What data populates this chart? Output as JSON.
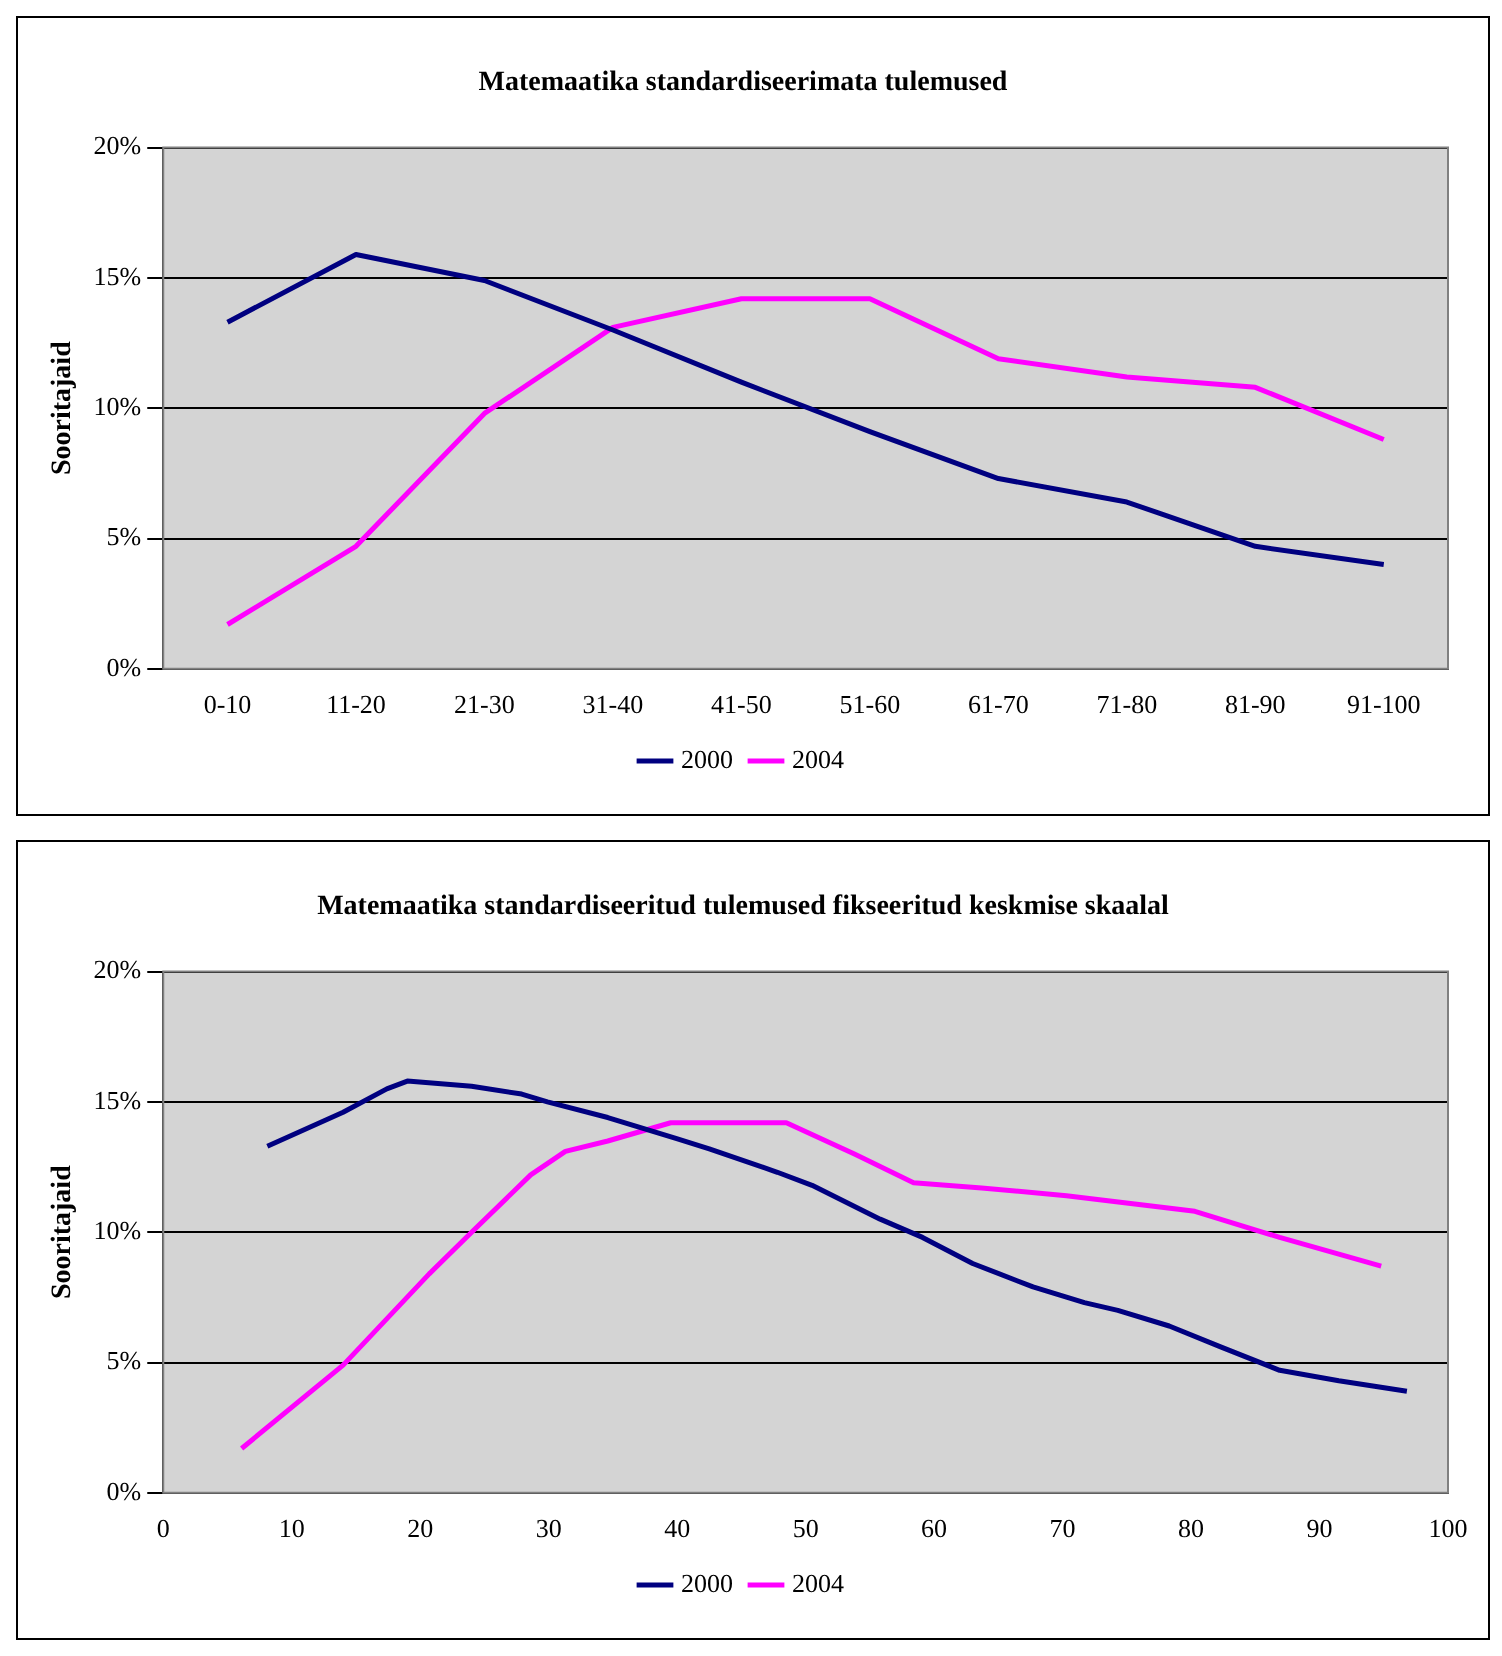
{
  "chart_data": [
    {
      "type": "line",
      "title": "Matemaatika standardiseerimata tulemused",
      "ylabel": "Sooritajaid",
      "categories": [
        "0-10",
        "11-20",
        "21-30",
        "31-40",
        "41-50",
        "51-60",
        "61-70",
        "71-80",
        "81-90",
        "91-100"
      ],
      "series": [
        {
          "name": "2000",
          "color": "#000080",
          "values": [
            13.3,
            15.9,
            14.9,
            13.0,
            11.0,
            9.1,
            7.3,
            6.4,
            4.7,
            4.0
          ]
        },
        {
          "name": "2004",
          "color": "#ff00ff",
          "values": [
            1.7,
            4.7,
            9.8,
            13.1,
            14.2,
            14.2,
            11.9,
            11.2,
            10.8,
            8.8
          ]
        }
      ],
      "ylim": [
        0,
        20
      ],
      "yticks": [
        {
          "value": 0,
          "label": "0%"
        },
        {
          "value": 5,
          "label": "5%"
        },
        {
          "value": 10,
          "label": "10%"
        },
        {
          "value": 15,
          "label": "15%"
        },
        {
          "value": 20,
          "label": "20%"
        }
      ],
      "grid": "y",
      "legend": "bottom",
      "marker": "none",
      "line_style": "solid"
    },
    {
      "type": "line",
      "title": "Matemaatika standardiseeritud tulemused fikseeritud keskmise skaalal",
      "ylabel": "Sooritajaid",
      "series": [
        {
          "name": "2000",
          "color": "#000080",
          "x": [
            8.1,
            14.0,
            17.4,
            19.0,
            24.0,
            27.9,
            29.9,
            34.6,
            39.9,
            42.5,
            47.8,
            50.5,
            55.8,
            59.1,
            63.0,
            67.7,
            71.7,
            74.3,
            78.3,
            82.3,
            86.9,
            91.5,
            96.8
          ],
          "values": [
            13.3,
            14.6,
            15.5,
            15.8,
            15.6,
            15.3,
            15.0,
            14.4,
            13.6,
            13.2,
            12.3,
            11.8,
            10.5,
            9.8,
            8.8,
            7.9,
            7.3,
            7.0,
            6.4,
            5.6,
            4.7,
            4.3,
            3.9
          ]
        },
        {
          "name": "2004",
          "color": "#ff00ff",
          "x": [
            6.1,
            14.0,
            20.7,
            24.0,
            28.6,
            31.3,
            34.6,
            39.5,
            48.5,
            53.8,
            58.4,
            63.7,
            70.3,
            80.3,
            86.9,
            94.8
          ],
          "values": [
            1.7,
            4.9,
            8.4,
            10.0,
            12.2,
            13.1,
            13.5,
            14.2,
            14.2,
            13.0,
            11.9,
            11.7,
            11.4,
            10.8,
            9.8,
            8.7
          ]
        }
      ],
      "xlim": [
        0,
        100
      ],
      "xticks": [
        0,
        10,
        20,
        30,
        40,
        50,
        60,
        70,
        80,
        90,
        100
      ],
      "ylim": [
        0,
        20
      ],
      "yticks": [
        {
          "value": 0,
          "label": "0%"
        },
        {
          "value": 5,
          "label": "5%"
        },
        {
          "value": 10,
          "label": "10%"
        },
        {
          "value": 15,
          "label": "15%"
        },
        {
          "value": 20,
          "label": "20%"
        }
      ],
      "grid": "y",
      "legend": "bottom",
      "marker": "none",
      "line_style": "solid"
    }
  ]
}
